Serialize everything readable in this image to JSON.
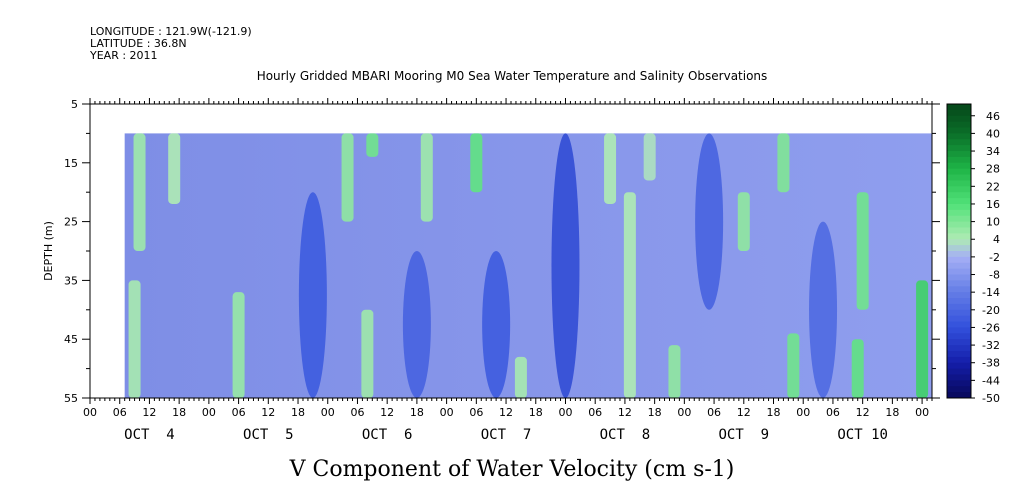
{
  "header": {
    "longitude": "LONGITUDE : 121.9W(-121.9)",
    "latitude": "LATITUDE : 36.8N",
    "year": "YEAR : 2011",
    "title": "Hourly Gridded MBARI Mooring M0 Sea Water Temperature and Salinity Observations"
  },
  "chart_data": {
    "type": "heatmap",
    "title": "Hourly Gridded MBARI Mooring M0 Sea Water Temperature and Salinity Observations",
    "xlabel": "V Component of Water Velocity (cm s-1)",
    "ylabel": "DEPTH (m)",
    "ylim": [
      55,
      5
    ],
    "y_ticks": [
      "5",
      "15",
      "25",
      "35",
      "45",
      "55"
    ],
    "hour_ticks": [
      "00",
      "06",
      "12",
      "18",
      "00",
      "06",
      "12",
      "18",
      "00",
      "06",
      "12",
      "18",
      "00",
      "06",
      "12",
      "18",
      "00",
      "06",
      "12",
      "18",
      "00",
      "06",
      "12",
      "18",
      "00",
      "06",
      "12",
      "18",
      "00"
    ],
    "day_labels": [
      "OCT  4",
      "OCT  5",
      "OCT  6",
      "OCT  7",
      "OCT  8",
      "OCT  9",
      "OCT 10"
    ],
    "x_range_hours": [
      0,
      170
    ],
    "data_depth_range": [
      10,
      55
    ],
    "data_start_hour": 7,
    "colorbar": {
      "labels": [
        "46",
        "40",
        "34",
        "28",
        "22",
        "16",
        "10",
        "4",
        "-2",
        "-8",
        "-14",
        "-20",
        "-26",
        "-32",
        "-38",
        "-44",
        "-50"
      ],
      "range": [
        -50,
        50
      ]
    },
    "positive_bands": [
      {
        "hour": 10,
        "depth_from": 10,
        "depth_to": 30,
        "value": 6
      },
      {
        "hour": 9,
        "depth_from": 35,
        "depth_to": 55,
        "value": 5
      },
      {
        "hour": 17,
        "depth_from": 10,
        "depth_to": 22,
        "value": 4
      },
      {
        "hour": 30,
        "depth_from": 37,
        "depth_to": 55,
        "value": 7
      },
      {
        "hour": 52,
        "depth_from": 10,
        "depth_to": 25,
        "value": 8
      },
      {
        "hour": 57,
        "depth_from": 10,
        "depth_to": 14,
        "value": 12
      },
      {
        "hour": 56,
        "depth_from": 40,
        "depth_to": 55,
        "value": 6
      },
      {
        "hour": 68,
        "depth_from": 10,
        "depth_to": 25,
        "value": 6
      },
      {
        "hour": 78,
        "depth_from": 10,
        "depth_to": 20,
        "value": 14
      },
      {
        "hour": 87,
        "depth_from": 48,
        "depth_to": 55,
        "value": 5
      },
      {
        "hour": 105,
        "depth_from": 10,
        "depth_to": 22,
        "value": 4
      },
      {
        "hour": 109,
        "depth_from": 20,
        "depth_to": 55,
        "value": 4
      },
      {
        "hour": 113,
        "depth_from": 10,
        "depth_to": 18,
        "value": 3
      },
      {
        "hour": 118,
        "depth_from": 46,
        "depth_to": 55,
        "value": 8
      },
      {
        "hour": 132,
        "depth_from": 20,
        "depth_to": 30,
        "value": 8
      },
      {
        "hour": 140,
        "depth_from": 10,
        "depth_to": 20,
        "value": 10
      },
      {
        "hour": 142,
        "depth_from": 44,
        "depth_to": 55,
        "value": 12
      },
      {
        "hour": 156,
        "depth_from": 20,
        "depth_to": 40,
        "value": 12
      },
      {
        "hour": 155,
        "depth_from": 45,
        "depth_to": 55,
        "value": 14
      },
      {
        "hour": 168,
        "depth_from": 35,
        "depth_to": 55,
        "value": 20
      }
    ],
    "negative_cores": [
      {
        "hour": 45,
        "depth_from": 20,
        "depth_to": 55,
        "value": -24
      },
      {
        "hour": 66,
        "depth_from": 30,
        "depth_to": 55,
        "value": -22
      },
      {
        "hour": 96,
        "depth_from": 10,
        "depth_to": 55,
        "value": -28
      },
      {
        "hour": 82,
        "depth_from": 30,
        "depth_to": 55,
        "value": -24
      },
      {
        "hour": 125,
        "depth_from": 10,
        "depth_to": 40,
        "value": -22
      },
      {
        "hour": 148,
        "depth_from": 25,
        "depth_to": 55,
        "value": -20
      }
    ],
    "grid": false
  }
}
